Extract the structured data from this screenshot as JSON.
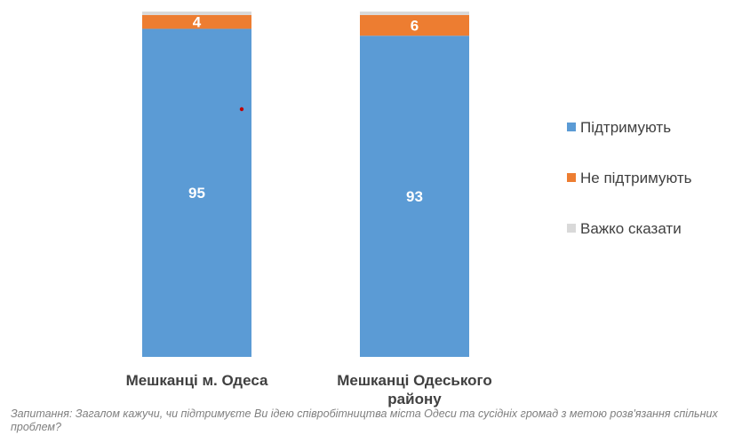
{
  "chart_data": {
    "type": "bar",
    "stacked": true,
    "normalized": "percent",
    "categories": [
      "Мешканці м. Одеса",
      "Мешканці Одеського району"
    ],
    "category_lines": [
      [
        "Мешканці м. Одеса"
      ],
      [
        "Мешканці Одеського",
        "району"
      ]
    ],
    "series": [
      {
        "name": "Підтримують",
        "values": [
          95,
          93
        ],
        "color": "#5b9bd5"
      },
      {
        "name": "Не підтримують",
        "values": [
          4,
          6
        ],
        "color": "#ed7d31"
      },
      {
        "name": "Важко сказати",
        "values": [
          1,
          1
        ],
        "color": "#d9d9d9"
      }
    ],
    "data_labels": [
      [
        "95",
        "93"
      ],
      [
        "4",
        "6"
      ],
      [
        "",
        ""
      ]
    ],
    "legend_position": "right",
    "grid": false,
    "ylim": [
      0,
      100
    ]
  },
  "question": "Запитання: Загалом кажучи, чи підтримуєте Ви ідею співробітництва міста Одеси та сусідніх громад з метою розв'язання спільних проблем?"
}
